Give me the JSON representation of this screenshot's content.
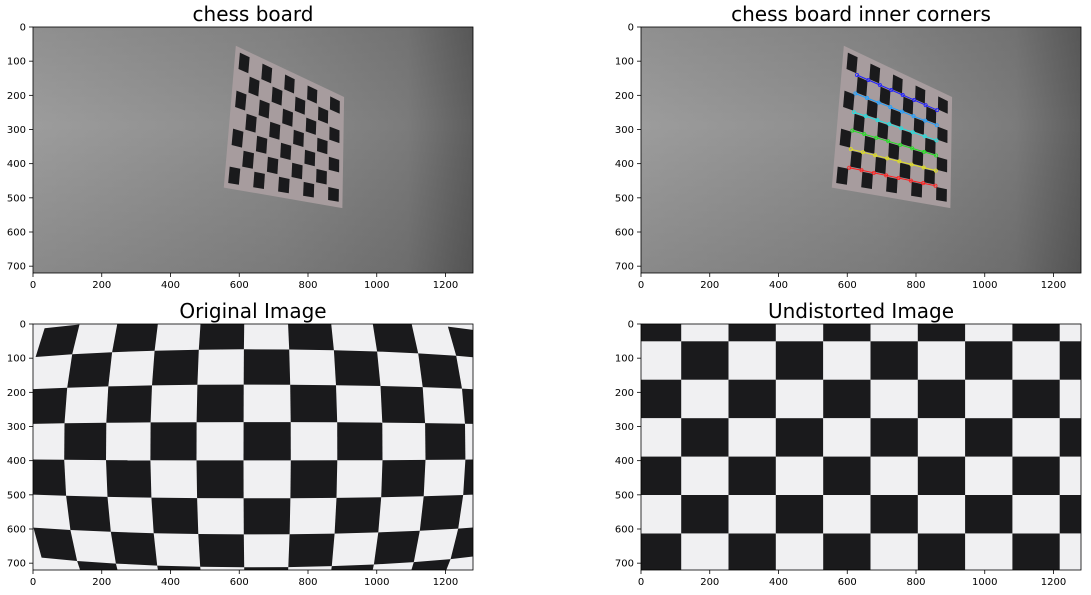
{
  "figure": {
    "panels": [
      {
        "title": "chess board",
        "image": "grey-wall-with-checkerboard-photo",
        "xticks": [
          "0",
          "200",
          "400",
          "600",
          "800",
          "1000",
          "1200"
        ],
        "yticks": [
          "0",
          "100",
          "200",
          "300",
          "400",
          "500",
          "600",
          "700"
        ]
      },
      {
        "title": "chess board inner corners",
        "image": "grey-wall-with-checkerboard-detected-corners-photo",
        "xticks": [
          "0",
          "200",
          "400",
          "600",
          "800",
          "1000",
          "1200"
        ],
        "yticks": [
          "0",
          "100",
          "200",
          "300",
          "400",
          "500",
          "600",
          "700"
        ]
      },
      {
        "title": "Original Image",
        "image": "distorted-checkerboard-closeup-photo",
        "xticks": [
          "0",
          "200",
          "400",
          "600",
          "800",
          "1000",
          "1200"
        ],
        "yticks": [
          "0",
          "100",
          "200",
          "300",
          "400",
          "500",
          "600",
          "700"
        ]
      },
      {
        "title": "Undistorted Image",
        "image": "undistorted-checkerboard-closeup-photo",
        "xticks": [
          "0",
          "200",
          "400",
          "600",
          "800",
          "1000",
          "1200"
        ],
        "yticks": [
          "0",
          "100",
          "200",
          "300",
          "400",
          "500",
          "600",
          "700"
        ]
      }
    ],
    "colors": {
      "wall": "#8e8e8e",
      "board_frame": "#a79c9e",
      "dark_square": "#1a1a1c",
      "light_square": "#f0f0f2",
      "corner_row_colors": [
        "#2020ff",
        "#20a0ff",
        "#20e0e0",
        "#20e020",
        "#e0e020",
        "#ff2020"
      ]
    }
  }
}
